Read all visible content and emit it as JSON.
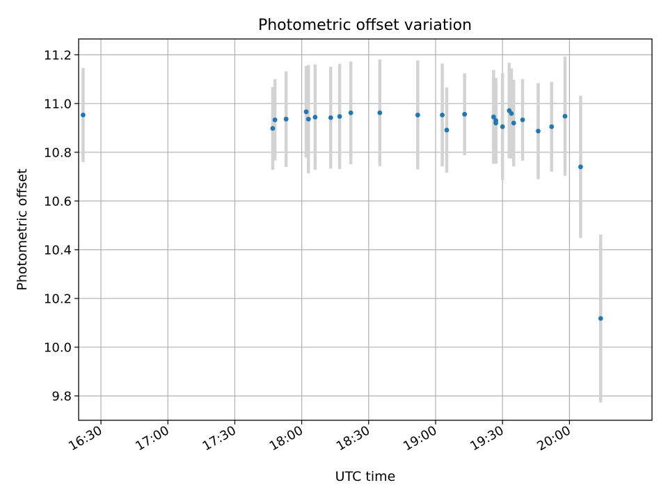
{
  "chart_data": {
    "type": "scatter",
    "title": "Photometric offset variation",
    "xlabel": "UTC time",
    "ylabel": "Photometric offset",
    "xlim": [
      "16:20",
      "20:37"
    ],
    "ylim": [
      9.7,
      11.265
    ],
    "grid": true,
    "x_ticks": [
      "16:30",
      "17:00",
      "17:30",
      "18:00",
      "18:30",
      "19:00",
      "19:30",
      "20:00"
    ],
    "y_ticks": [
      9.8,
      10.0,
      10.2,
      10.4,
      10.6,
      10.8,
      11.0,
      11.2
    ],
    "colors": {
      "points": "#1f77b4",
      "errorbars": "#d3d3d3",
      "grid": "#b0b0b0"
    },
    "series": [
      {
        "points": [
          {
            "x": "16:22",
            "y": 10.953,
            "err": 0.193
          },
          {
            "x": "17:47",
            "y": 10.898,
            "err": 0.17
          },
          {
            "x": "17:48",
            "y": 10.933,
            "err": 0.167
          },
          {
            "x": "17:53",
            "y": 10.936,
            "err": 0.196
          },
          {
            "x": "18:02",
            "y": 10.966,
            "err": 0.188
          },
          {
            "x": "18:03",
            "y": 10.936,
            "err": 0.222
          },
          {
            "x": "18:06",
            "y": 10.944,
            "err": 0.216
          },
          {
            "x": "18:13",
            "y": 10.942,
            "err": 0.209
          },
          {
            "x": "18:17",
            "y": 10.947,
            "err": 0.216
          },
          {
            "x": "18:22",
            "y": 10.962,
            "err": 0.211
          },
          {
            "x": "18:35",
            "y": 10.962,
            "err": 0.219
          },
          {
            "x": "18:52",
            "y": 10.953,
            "err": 0.224
          },
          {
            "x": "19:03",
            "y": 10.953,
            "err": 0.211
          },
          {
            "x": "19:05",
            "y": 10.891,
            "err": 0.175
          },
          {
            "x": "19:13",
            "y": 10.956,
            "err": 0.168
          },
          {
            "x": "19:26",
            "y": 10.945,
            "err": 0.193
          },
          {
            "x": "19:27",
            "y": 10.93,
            "err": 0.175
          },
          {
            "x": "19:27",
            "y": 10.92,
            "err": 0.167
          },
          {
            "x": "19:30",
            "y": 10.905,
            "err": 0.219
          },
          {
            "x": "19:33",
            "y": 10.971,
            "err": 0.196
          },
          {
            "x": "19:34",
            "y": 10.959,
            "err": 0.185
          },
          {
            "x": "19:35",
            "y": 10.92,
            "err": 0.178
          },
          {
            "x": "19:39",
            "y": 10.933,
            "err": 0.167
          },
          {
            "x": "19:46",
            "y": 10.887,
            "err": 0.197
          },
          {
            "x": "19:52",
            "y": 10.905,
            "err": 0.184
          },
          {
            "x": "19:58",
            "y": 10.948,
            "err": 0.245
          },
          {
            "x": "20:05",
            "y": 10.74,
            "err": 0.292
          },
          {
            "x": "20:14",
            "y": 10.118,
            "err": 0.345
          }
        ]
      }
    ]
  }
}
